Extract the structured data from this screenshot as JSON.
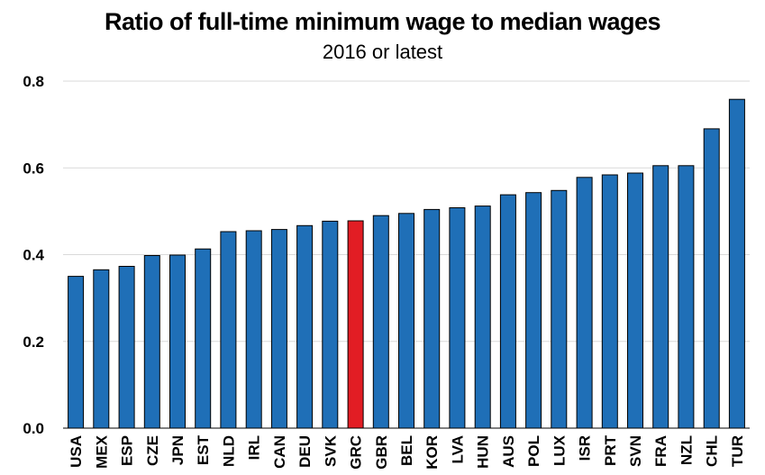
{
  "chart_data": {
    "type": "bar",
    "title": "Ratio of full-time minimum wage to median wages",
    "subtitle": "2016 or latest",
    "xlabel": "",
    "ylabel": "",
    "ylim": [
      0,
      0.8
    ],
    "yticks": [
      "0.0",
      "0.2",
      "0.4",
      "0.6",
      "0.8"
    ],
    "grid": true,
    "categories": [
      "USA",
      "MEX",
      "ESP",
      "CZE",
      "JPN",
      "EST",
      "NLD",
      "IRL",
      "CAN",
      "DEU",
      "SVK",
      "GRC",
      "GBR",
      "BEL",
      "KOR",
      "LVA",
      "HUN",
      "AUS",
      "POL",
      "LUX",
      "ISR",
      "PRT",
      "SVN",
      "FRA",
      "NZL",
      "CHL",
      "TUR"
    ],
    "values": [
      0.35,
      0.365,
      0.373,
      0.398,
      0.399,
      0.413,
      0.453,
      0.455,
      0.458,
      0.467,
      0.477,
      0.478,
      0.49,
      0.495,
      0.504,
      0.508,
      0.512,
      0.538,
      0.543,
      0.548,
      0.578,
      0.584,
      0.588,
      0.605,
      0.605,
      0.69,
      0.758
    ],
    "highlight": "GRC",
    "colors": {
      "bar": "#1F6FB7",
      "highlight": "#E21D24",
      "grid": "#D9D9D9",
      "axis": "#000000"
    }
  }
}
